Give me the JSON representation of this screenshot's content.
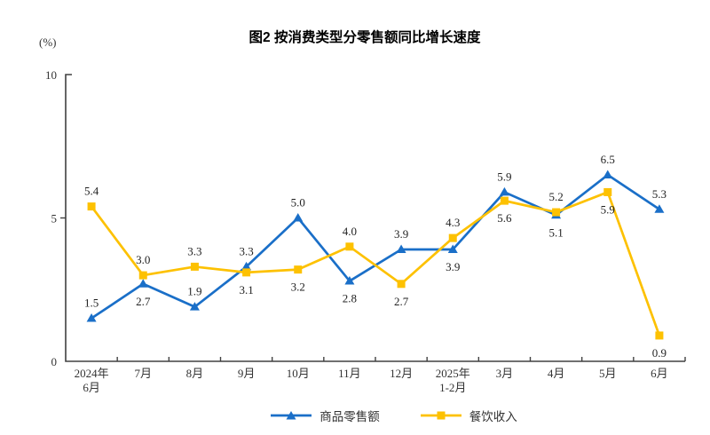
{
  "title": "图2 按消费类型分零售额同比增长速度",
  "y_axis_unit": "(%)",
  "colors": {
    "axis": "#404040",
    "tick_text": "#333333",
    "label_text": "#222222",
    "series_blue": "#1a6fc8",
    "series_yellow": "#fdc101"
  },
  "chart_data": {
    "type": "line",
    "title": "图2 按消费类型分零售额同比增长速度",
    "ylabel": "(%)",
    "xlabel": "",
    "ylim": [
      0,
      10
    ],
    "yticks": [
      0,
      5,
      10
    ],
    "grid": false,
    "legend_position": "bottom",
    "categories": [
      "2024年\n6月",
      "7月",
      "8月",
      "9月",
      "10月",
      "11月",
      "12月",
      "2025年\n1-2月",
      "3月",
      "4月",
      "5月",
      "6月"
    ],
    "series": [
      {
        "name": "商品零售额",
        "color": "#1a6fc8",
        "marker": "triangle",
        "values": [
          1.5,
          2.7,
          1.9,
          3.3,
          5.0,
          2.8,
          3.9,
          3.9,
          5.9,
          5.1,
          6.5,
          5.3
        ],
        "label_positions": [
          "above",
          "below",
          "above",
          "above",
          "above",
          "below",
          "above",
          "below",
          "above",
          "below",
          "above",
          "above"
        ]
      },
      {
        "name": "餐饮收入",
        "color": "#fdc101",
        "marker": "square",
        "values": [
          5.4,
          3.0,
          3.3,
          3.1,
          3.2,
          4.0,
          2.7,
          4.3,
          5.6,
          5.2,
          5.9,
          0.9
        ],
        "label_positions": [
          "above",
          "above",
          "above",
          "below",
          "below",
          "above",
          "below",
          "above",
          "below",
          "above",
          "below",
          "below"
        ]
      }
    ]
  }
}
